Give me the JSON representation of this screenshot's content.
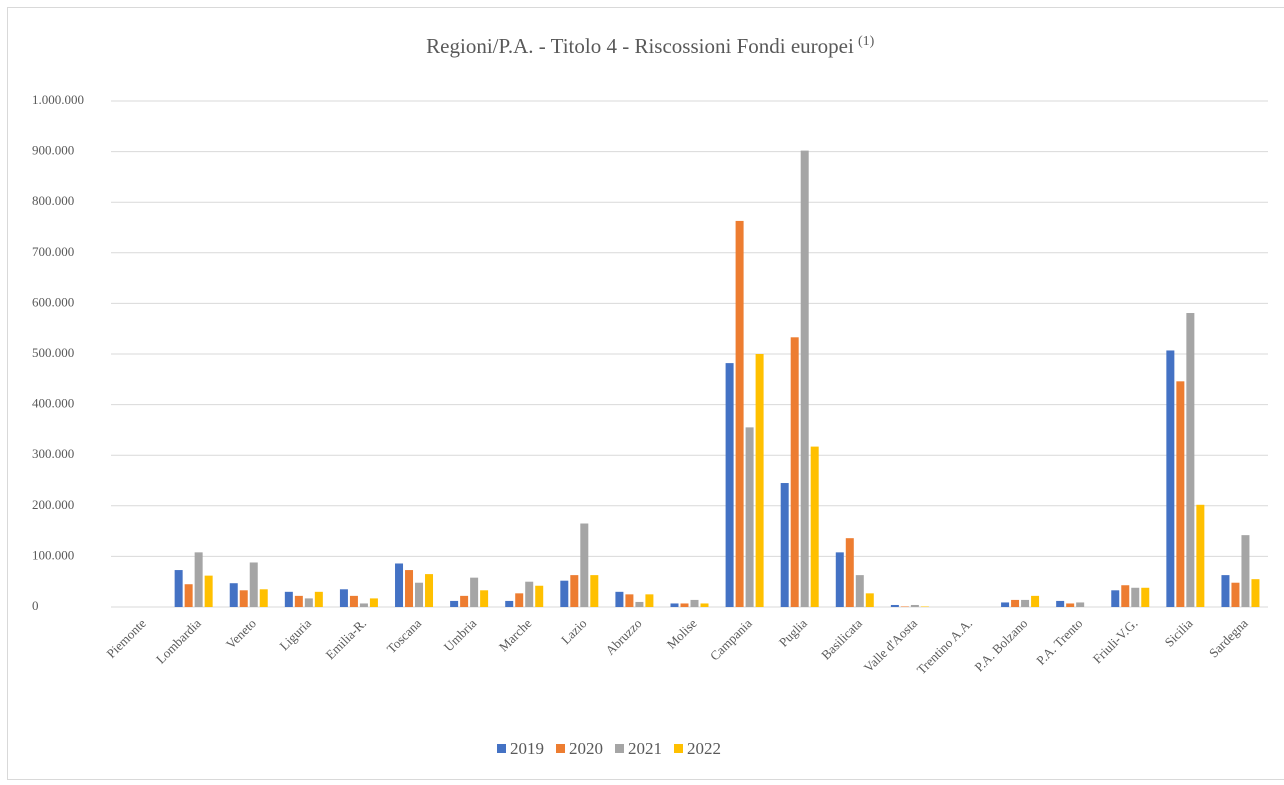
{
  "chart_data": {
    "type": "bar",
    "title": "Regioni/P.A. - Titolo 4 - Riscossioni Fondi europei",
    "title_note": "(1)",
    "categories": [
      "Piemonte",
      "Lombardia",
      "Veneto",
      "Liguria",
      "Emilia-R.",
      "Toscana",
      "Umbria",
      "Marche",
      "Lazio",
      "Abruzzo",
      "Molise",
      "Campania",
      "Puglia",
      "Basilicata",
      "Valle d'Aosta",
      "Trentino A.A.",
      "P.A. Bolzano",
      "P.A. Trento",
      "Friuli-V.G.",
      "Sicilia",
      "Sardegna"
    ],
    "series": [
      {
        "name": "2019",
        "color": "#4472c4",
        "values": [
          0,
          73000,
          47000,
          30000,
          35000,
          86000,
          12000,
          12000,
          52000,
          30000,
          7000,
          482000,
          245000,
          108000,
          4000,
          0,
          9000,
          12000,
          33000,
          507000,
          63000
        ]
      },
      {
        "name": "2020",
        "color": "#ed7d31",
        "values": [
          0,
          45000,
          33000,
          22000,
          22000,
          73000,
          22000,
          27000,
          63000,
          25000,
          7000,
          763000,
          533000,
          136000,
          1000,
          0,
          14000,
          7000,
          43000,
          446000,
          48000
        ]
      },
      {
        "name": "2021",
        "color": "#a5a5a5",
        "values": [
          0,
          108000,
          88000,
          17000,
          7000,
          48000,
          58000,
          50000,
          165000,
          10000,
          14000,
          355000,
          902000,
          63000,
          4000,
          0,
          14000,
          9000,
          38000,
          581000,
          142000
        ]
      },
      {
        "name": "2022",
        "color": "#ffc000",
        "values": [
          0,
          62000,
          35000,
          30000,
          17000,
          65000,
          33000,
          42000,
          63000,
          25000,
          7000,
          500000,
          317000,
          27000,
          1000,
          0,
          22000,
          0,
          38000,
          202000,
          55000
        ]
      }
    ],
    "ylim": [
      0,
      1000000
    ],
    "yticks": [
      0,
      {
        "value": 100000,
        "label": "100.000"
      },
      {
        "value": 200000,
        "label": "200.000"
      },
      {
        "value": 300000,
        "label": "300.000"
      },
      {
        "value": 400000,
        "label": "400.000"
      },
      {
        "value": 500000,
        "label": "500.000"
      },
      {
        "value": 600000,
        "label": "600.000"
      },
      {
        "value": 700000,
        "label": "700.000"
      },
      {
        "value": 800000,
        "label": "800.000"
      },
      {
        "value": 900000,
        "label": "900.000"
      },
      {
        "value": 1000000,
        "label": "1.000.000"
      }
    ],
    "grid": true,
    "legend": "bottom"
  }
}
